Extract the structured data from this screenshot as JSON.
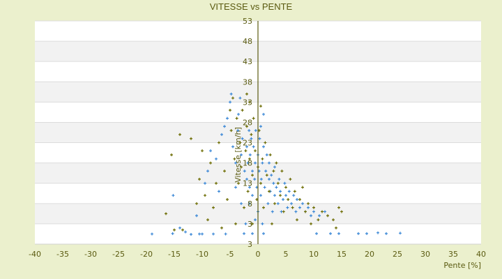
{
  "chart_data": {
    "type": "scatter",
    "title": "VITESSE vs PENTE",
    "xlabel": "Pente [%]",
    "ylabel": "Vitesse [km/h]",
    "xlim": [
      -40,
      40
    ],
    "ylim": [
      -2,
      53
    ],
    "x_ticks": [
      "-40",
      "-35",
      "-30",
      "-25",
      "-20",
      "-15",
      "-10",
      "-5",
      "0",
      "5",
      "10",
      "15",
      "20",
      "25",
      "30",
      "35",
      "40"
    ],
    "y_ticks": [
      "53",
      "48",
      "43",
      "38",
      "33",
      "28",
      "23",
      "18",
      "13",
      "8",
      "3",
      "3"
    ],
    "grid": "horizontal bands",
    "colors": {
      "series_a": "#3a87d6",
      "series_b": "#6b6b00",
      "axis": "#5a5a10",
      "band": "#f2f2f2"
    },
    "series": [
      {
        "color": "#3a87d6",
        "points": [
          [
            -19,
            0.5
          ],
          [
            -15.3,
            0.6
          ],
          [
            -15.2,
            10
          ],
          [
            -14,
            2
          ],
          [
            -13,
            1
          ],
          [
            -12,
            0.4
          ],
          [
            -11,
            5
          ],
          [
            -10.5,
            0.5
          ],
          [
            -10,
            0.5
          ],
          [
            -9.5,
            13
          ],
          [
            -9,
            16
          ],
          [
            -8.5,
            21
          ],
          [
            -8,
            0.5
          ],
          [
            -7.5,
            19
          ],
          [
            -7,
            11
          ],
          [
            -6.5,
            25
          ],
          [
            -6,
            27
          ],
          [
            -5.8,
            0.5
          ],
          [
            -5.5,
            29
          ],
          [
            -5,
            33
          ],
          [
            -4.8,
            35
          ],
          [
            -4.5,
            22
          ],
          [
            -4,
            18
          ],
          [
            -4,
            12
          ],
          [
            -3.6,
            26
          ],
          [
            -3.5,
            30
          ],
          [
            -3.2,
            34
          ],
          [
            -3,
            8
          ],
          [
            -3,
            20
          ],
          [
            -2.8,
            24
          ],
          [
            -2.5,
            0.6
          ],
          [
            -2.4,
            16
          ],
          [
            -2.2,
            3
          ],
          [
            -2,
            14
          ],
          [
            -2,
            22
          ],
          [
            -1.8,
            18
          ],
          [
            -1.6,
            26
          ],
          [
            -1.5,
            12
          ],
          [
            -1.4,
            20
          ],
          [
            -1.2,
            24
          ],
          [
            -1,
            0.6
          ],
          [
            -1,
            10
          ],
          [
            -1,
            16
          ],
          [
            -0.8,
            22
          ],
          [
            -0.6,
            14
          ],
          [
            -0.5,
            18
          ],
          [
            -0.4,
            26
          ],
          [
            -0.2,
            12
          ],
          [
            0,
            20
          ],
          [
            0,
            6
          ],
          [
            0.2,
            16
          ],
          [
            0.3,
            24
          ],
          [
            0.5,
            10
          ],
          [
            0.6,
            14
          ],
          [
            0.8,
            18
          ],
          [
            1,
            22
          ],
          [
            1,
            0.6
          ],
          [
            1.2,
            12
          ],
          [
            1.4,
            16
          ],
          [
            1.6,
            20
          ],
          [
            1.8,
            8
          ],
          [
            2,
            14
          ],
          [
            2,
            18
          ],
          [
            2.2,
            11
          ],
          [
            2.4,
            15
          ],
          [
            2.6,
            6
          ],
          [
            2.8,
            13
          ],
          [
            3,
            10
          ],
          [
            3,
            17
          ],
          [
            3.3,
            12
          ],
          [
            3.6,
            8
          ],
          [
            3.8,
            14
          ],
          [
            4,
            11
          ],
          [
            4.2,
            6
          ],
          [
            4.5,
            9
          ],
          [
            4.8,
            13
          ],
          [
            5,
            10
          ],
          [
            5.3,
            7
          ],
          [
            5.6,
            11
          ],
          [
            6,
            8
          ],
          [
            6.4,
            10
          ],
          [
            6.8,
            6
          ],
          [
            7,
            9
          ],
          [
            7.5,
            7
          ],
          [
            8,
            8
          ],
          [
            8.5,
            6
          ],
          [
            9,
            7
          ],
          [
            9.5,
            5
          ],
          [
            10,
            6
          ],
          [
            10.5,
            0.6
          ],
          [
            11,
            5
          ],
          [
            12,
            6
          ],
          [
            13,
            0.6
          ],
          [
            14.5,
            0.6
          ],
          [
            18,
            0.6
          ],
          [
            19.5,
            0.6
          ],
          [
            21.5,
            0.8
          ],
          [
            23,
            0.6
          ],
          [
            25.5,
            0.7
          ],
          [
            1,
            30
          ],
          [
            0.5,
            27
          ],
          [
            -1.5,
            8
          ],
          [
            -0.5,
            4
          ],
          [
            0.8,
            3
          ]
        ]
      },
      {
        "color": "#6b6b00",
        "points": [
          [
            -16.5,
            5.5
          ],
          [
            -15.5,
            20
          ],
          [
            -15,
            1.5
          ],
          [
            -14,
            25
          ],
          [
            -13.5,
            1.5
          ],
          [
            -12,
            24
          ],
          [
            -11,
            8
          ],
          [
            -10.5,
            14
          ],
          [
            -10,
            21
          ],
          [
            -9.5,
            10
          ],
          [
            -9,
            4
          ],
          [
            -8.5,
            18
          ],
          [
            -8,
            7
          ],
          [
            -7.5,
            13
          ],
          [
            -7,
            23
          ],
          [
            -6.5,
            2
          ],
          [
            -6,
            16
          ],
          [
            -5.5,
            9
          ],
          [
            -5,
            31
          ],
          [
            -4.8,
            26
          ],
          [
            -4.5,
            34
          ],
          [
            -4.2,
            19
          ],
          [
            -4,
            3
          ],
          [
            -3.8,
            29
          ],
          [
            -3.5,
            13
          ],
          [
            -3.2,
            23
          ],
          [
            -3,
            17
          ],
          [
            -2.8,
            31
          ],
          [
            -2.5,
            7
          ],
          [
            -2.2,
            21
          ],
          [
            -2,
            27
          ],
          [
            -1.8,
            11
          ],
          [
            -1.5,
            19
          ],
          [
            -1.2,
            25
          ],
          [
            -1,
            3
          ],
          [
            -1,
            15
          ],
          [
            -0.8,
            29
          ],
          [
            -0.5,
            21
          ],
          [
            -0.2,
            9
          ],
          [
            0,
            17
          ],
          [
            0.2,
            26
          ],
          [
            0.5,
            13
          ],
          [
            0.8,
            19
          ],
          [
            1,
            7
          ],
          [
            1.3,
            23
          ],
          [
            1.6,
            15
          ],
          [
            2,
            11
          ],
          [
            2.2,
            20
          ],
          [
            2.5,
            3
          ],
          [
            2.8,
            16
          ],
          [
            3,
            8
          ],
          [
            3.3,
            18
          ],
          [
            3.6,
            13
          ],
          [
            4,
            10
          ],
          [
            4.3,
            16
          ],
          [
            4.6,
            6
          ],
          [
            5,
            12
          ],
          [
            5.4,
            9
          ],
          [
            5.8,
            14
          ],
          [
            6.2,
            7
          ],
          [
            6.6,
            11
          ],
          [
            7,
            4
          ],
          [
            7.5,
            9
          ],
          [
            8,
            12
          ],
          [
            8.5,
            6
          ],
          [
            9,
            8
          ],
          [
            9.5,
            3
          ],
          [
            10,
            7
          ],
          [
            10.8,
            4
          ],
          [
            11.5,
            6
          ],
          [
            12.5,
            5
          ],
          [
            13.5,
            4
          ],
          [
            14,
            2
          ],
          [
            14.5,
            7
          ],
          [
            15,
            6
          ],
          [
            0.5,
            32
          ],
          [
            -2,
            35
          ],
          [
            -1.5,
            33
          ]
        ]
      }
    ]
  }
}
